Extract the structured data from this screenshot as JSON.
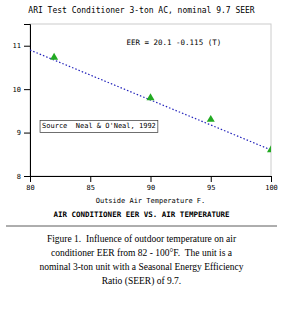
{
  "chart_data": {
    "type": "scatter",
    "title": "ARI Test Conditioner 3-ton AC, nominal 9.7 SEER",
    "x_label": "Outside Air Temperature F.",
    "subtitle": "AIR CONDITIONER EER VS. AIR TEMPERATURE",
    "annotations": [
      "EER = 20.1 -0.115 (T)",
      "Source  Neal & O'Neal, 1992"
    ],
    "caption": [
      "Figure 1.  Influence of outdoor temperature on air",
      "conditioner EER from 82 - 100°F.  The unit is a",
      "nominal 3-ton unit with a Seasonal Energy Efficiency",
      "Ratio (SEER) of 9.7."
    ],
    "xlim": [
      80,
      100
    ],
    "ylim": [
      8,
      11.5
    ],
    "xticks": [
      80,
      85,
      90,
      95,
      100
    ],
    "yticks": [
      8,
      9,
      10,
      11
    ],
    "grid": false,
    "series": [
      {
        "type": "scatter",
        "marker": "triangle",
        "color": "#22aa22",
        "x": [
          82,
          90,
          95,
          100
        ],
        "values": [
          10.73,
          9.8,
          9.3,
          8.6
        ]
      },
      {
        "type": "line",
        "line_style": "dotted",
        "color": "#2222bb",
        "x": [
          80,
          100
        ],
        "values": [
          10.9,
          8.6
        ]
      }
    ]
  }
}
